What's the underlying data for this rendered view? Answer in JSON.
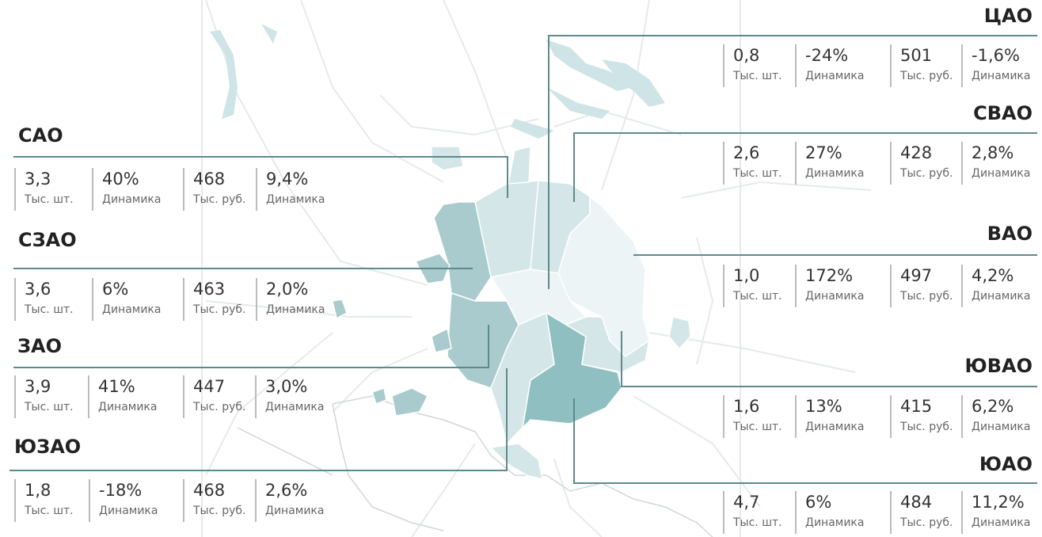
{
  "map": {
    "colors": {
      "outline": "#5f8a8c",
      "fill_light": "#edf4f5",
      "fill_mid": "#d4e6e8",
      "fill_dark": "#a9cbcd",
      "fill_darkest": "#8fbfc1",
      "water": "#cfe4e6",
      "roads": "#e6eaeb"
    }
  },
  "districts": [
    {
      "name": "ЦАО",
      "count": "0,8",
      "count_unit": "Тыс. шт.",
      "dyn": "-24%",
      "dyn_unit": "Динамика",
      "price": "501",
      "price_unit": "Тыс. руб.",
      "price_dyn": "-1,6%",
      "price_dyn_unit": "Динамика"
    },
    {
      "name": "СВАО",
      "count": "2,6",
      "count_unit": "Тыс. шт.",
      "dyn": "27%",
      "dyn_unit": "Динамика",
      "price": "428",
      "price_unit": "Тыс. руб.",
      "price_dyn": "2,8%",
      "price_dyn_unit": "Динамика"
    },
    {
      "name": "ВАО",
      "count": "1,0",
      "count_unit": "Тыс. шт.",
      "dyn": "172%",
      "dyn_unit": "Динамика",
      "price": "497",
      "price_unit": "Тыс. руб.",
      "price_dyn": "4,2%",
      "price_dyn_unit": "Динамика"
    },
    {
      "name": "ЮВАО",
      "count": "1,6",
      "count_unit": "Тыс. шт.",
      "dyn": "13%",
      "dyn_unit": "Динамика",
      "price": "415",
      "price_unit": "Тыс. руб.",
      "price_dyn": "6,2%",
      "price_dyn_unit": "Динамика"
    },
    {
      "name": "ЮАО",
      "count": "4,7",
      "count_unit": "Тыс. шт.",
      "dyn": "6%",
      "dyn_unit": "Динамика",
      "price": "484",
      "price_unit": "Тыс. руб.",
      "price_dyn": "11,2%",
      "price_dyn_unit": "Динамика"
    },
    {
      "name": "САО",
      "count": "3,3",
      "count_unit": "Тыс. шт.",
      "dyn": "40%",
      "dyn_unit": "Динамика",
      "price": "468",
      "price_unit": "Тыс. руб.",
      "price_dyn": "9,4%",
      "price_dyn_unit": "Динамика"
    },
    {
      "name": "СЗАО",
      "count": "3,6",
      "count_unit": "Тыс. шт.",
      "dyn": "6%",
      "dyn_unit": "Динамика",
      "price": "463",
      "price_unit": "Тыс. руб.",
      "price_dyn": "2,0%",
      "price_dyn_unit": "Динамика"
    },
    {
      "name": "ЗАО",
      "count": "3,9",
      "count_unit": "Тыс. шт.",
      "dyn": "41%",
      "dyn_unit": "Динамика",
      "price": "447",
      "price_unit": "Тыс. руб.",
      "price_dyn": "3,0%",
      "price_dyn_unit": "Динамика"
    },
    {
      "name": "ЮЗАО",
      "count": "1,8",
      "count_unit": "Тыс. шт.",
      "dyn": "-18%",
      "dyn_unit": "Динамика",
      "price": "468",
      "price_unit": "Тыс. руб.",
      "price_dyn": "2,6%",
      "price_dyn_unit": "Динамика"
    }
  ]
}
